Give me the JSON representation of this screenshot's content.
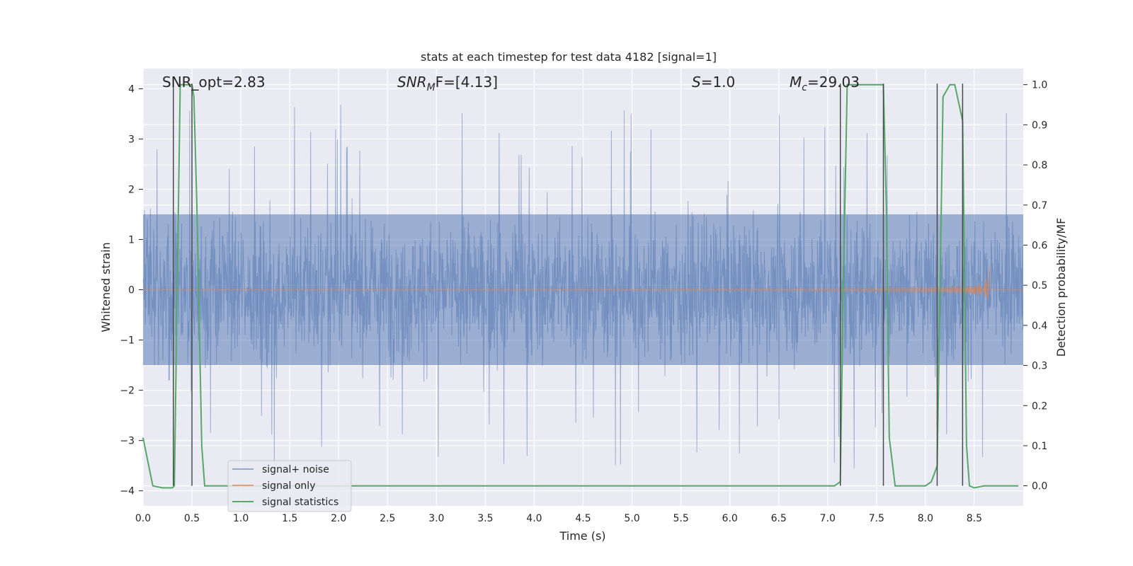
{
  "chart_data": {
    "type": "line",
    "title": "stats at each timestep for test data 4182 [signal=1]",
    "xlabel": "Time (s)",
    "ylabel": "Whitened strain",
    "ylabel_right": "Detection probability/MF",
    "xlim": [
      0.0,
      9.0
    ],
    "ylim": [
      -4.3,
      4.4
    ],
    "ylim_right": [
      -0.05,
      1.04
    ],
    "x_ticks": [
      "0.0",
      "0.5",
      "1.0",
      "1.5",
      "2.0",
      "2.5",
      "3.0",
      "3.5",
      "4.0",
      "4.5",
      "5.0",
      "5.5",
      "6.0",
      "6.5",
      "7.0",
      "7.5",
      "8.0",
      "8.5"
    ],
    "y_ticks": [
      "−4",
      "−3",
      "−2",
      "−1",
      "0",
      "1",
      "2",
      "3",
      "4"
    ],
    "y_right_ticks": [
      "0.0",
      "0.1",
      "0.2",
      "0.3",
      "0.4",
      "0.5",
      "0.6",
      "0.7",
      "0.8",
      "0.9",
      "1.0"
    ],
    "grid": true,
    "background": "#eaeaf2",
    "annotations": {
      "snr_opt": "SNR_opt=2.83",
      "snr_mf_main": "SNR",
      "snr_mf_sub": "M",
      "snr_mf_tail": "F=[4.13]",
      "s_main": "S",
      "s_tail": "=1.0",
      "mc_main": "M",
      "mc_sub": "c",
      "mc_tail": "=29.03"
    },
    "legend": {
      "position": "lower-left",
      "entries": [
        "signal+ noise",
        "signal only",
        "signal statistics"
      ]
    },
    "series": [
      {
        "name": "signal+ noise",
        "color": "#4c72b0",
        "opacity": 0.5,
        "style": "noise",
        "envelope_core": 1.5,
        "peak_max": 4.0,
        "trough_min": -3.9
      },
      {
        "name": "signal only",
        "color": "#dd8452",
        "style": "chirp",
        "merger_time": 8.65,
        "peak_amplitude": 0.65,
        "base_amplitude": 0.02
      },
      {
        "name": "signal statistics",
        "color": "#55a868",
        "axis": "right",
        "x": [
          0.0,
          0.05,
          0.1,
          0.2,
          0.3,
          0.32,
          0.35,
          0.38,
          0.42,
          0.45,
          0.5,
          0.52,
          0.55,
          0.6,
          0.63,
          0.7,
          1.0,
          2.0,
          3.0,
          4.0,
          5.0,
          6.0,
          7.0,
          7.07,
          7.13,
          7.16,
          7.2,
          7.3,
          7.5,
          7.57,
          7.6,
          7.63,
          7.69,
          7.8,
          8.0,
          8.06,
          8.12,
          8.15,
          8.18,
          8.25,
          8.3,
          8.38,
          8.42,
          8.45,
          8.5,
          8.6,
          8.7,
          8.8,
          8.95
        ],
        "values": [
          0.12,
          0.06,
          0.0,
          -0.005,
          -0.005,
          0.0,
          0.5,
          1.0,
          1.0,
          1.0,
          1.0,
          0.97,
          0.7,
          0.1,
          0.0,
          0.0,
          0.0,
          0.0,
          0.0,
          0.0,
          0.0,
          0.0,
          0.0,
          0.0,
          0.01,
          0.5,
          1.0,
          1.0,
          1.0,
          1.0,
          0.7,
          0.12,
          0.0,
          0.0,
          0.0,
          0.01,
          0.05,
          0.5,
          0.97,
          1.0,
          1.0,
          0.91,
          0.1,
          0.0,
          -0.005,
          0.0,
          0.0,
          0.0,
          0.0
        ]
      }
    ],
    "vlines": {
      "color": "#4a4a4a",
      "x": [
        0.31,
        0.5,
        7.13,
        7.57,
        8.12,
        8.38
      ],
      "y_top": 4.1,
      "y_bottom": -3.9
    }
  }
}
